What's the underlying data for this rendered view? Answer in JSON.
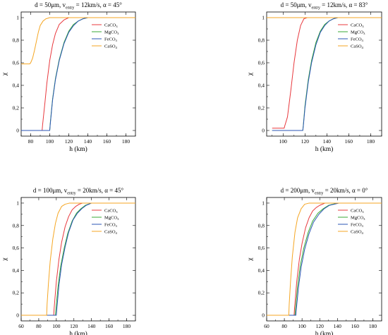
{
  "figure": {
    "colors": {
      "CaCO3": "#e8383d",
      "MgCO3": "#3aaa35",
      "FeCO3": "#2b55b5",
      "CaSO4": "#f5a623"
    }
  },
  "chart_data": [
    {
      "type": "line",
      "title": {
        "prefix": "d = 50μm, v",
        "sub": "entry",
        "suffix": " = 12km/s, α = 45°"
      },
      "xlabel": "h (km)",
      "ylabel": "χ",
      "xlim": [
        70,
        190
      ],
      "ylim": [
        -0.05,
        1.05
      ],
      "xticks": [
        "80",
        "100",
        "120",
        "140",
        "160",
        "180"
      ],
      "yticks": [
        "0",
        "0,2",
        "0,4",
        "0,6",
        "0,8",
        "1"
      ],
      "legend_position": "top-right",
      "series": [
        {
          "name": "CaCO3",
          "label_main": "CaCO",
          "label_sub": "3",
          "color": "#e8383d",
          "x": [
            70,
            92,
            92.5,
            95,
            97,
            100,
            103,
            106,
            110,
            115,
            120,
            125,
            190
          ],
          "y": [
            0,
            0,
            0.05,
            0.25,
            0.42,
            0.62,
            0.76,
            0.86,
            0.94,
            0.98,
            1.0,
            1.0,
            1.0
          ]
        },
        {
          "name": "MgCO3",
          "label_main": "MgCO",
          "label_sub": "3",
          "color": "#3aaa35",
          "x": [
            70,
            100,
            100.5,
            103,
            106,
            110,
            115,
            120,
            125,
            130,
            135,
            140,
            190
          ],
          "y": [
            0,
            0,
            0.06,
            0.28,
            0.46,
            0.63,
            0.78,
            0.88,
            0.94,
            0.97,
            0.99,
            1.0,
            1.0
          ]
        },
        {
          "name": "FeCO3",
          "label_main": "FeCO",
          "label_sub": "3",
          "color": "#2b55b5",
          "x": [
            70,
            100,
            100.5,
            103,
            106,
            110,
            115,
            120,
            125,
            130,
            135,
            140,
            190
          ],
          "y": [
            0,
            0,
            0.05,
            0.27,
            0.45,
            0.62,
            0.77,
            0.87,
            0.93,
            0.97,
            0.99,
            1.0,
            1.0
          ]
        },
        {
          "name": "CaSO4",
          "label_main": "CaSO",
          "label_sub": "4",
          "color": "#f5a623",
          "x": [
            70,
            72,
            76,
            79,
            80,
            82,
            84,
            86,
            88,
            90,
            93,
            96,
            100,
            190
          ],
          "y": [
            0.59,
            0.59,
            0.59,
            0.59,
            0.6,
            0.64,
            0.71,
            0.79,
            0.87,
            0.93,
            0.97,
            0.99,
            1.0,
            1.0
          ]
        }
      ]
    },
    {
      "type": "line",
      "title": {
        "prefix": "d = 50μm, v",
        "sub": "entry",
        "suffix": " = 12km/s, α = 83°"
      },
      "xlabel": "h (km)",
      "ylabel": "χ",
      "xlim": [
        85,
        190
      ],
      "ylim": [
        -0.05,
        1.05
      ],
      "xticks": [
        "100",
        "120",
        "140",
        "160",
        "180"
      ],
      "yticks": [
        "0",
        "0,2",
        "0,4",
        "0,6",
        "0,8",
        "1"
      ],
      "legend_position": "top-right",
      "series": [
        {
          "name": "CaCO3",
          "label_main": "CaCO",
          "label_sub": "3",
          "color": "#e8383d",
          "x": [
            90,
            101,
            101.5,
            104,
            107,
            110,
            113,
            116,
            119,
            122,
            190
          ],
          "y": [
            0.02,
            0.02,
            0.04,
            0.12,
            0.35,
            0.6,
            0.8,
            0.93,
            0.99,
            1.0,
            1.0
          ]
        },
        {
          "name": "MgCO3",
          "label_main": "MgCO",
          "label_sub": "3",
          "color": "#3aaa35",
          "x": [
            90,
            118,
            118.5,
            120,
            123,
            126,
            130,
            134,
            138,
            142,
            146,
            150,
            190
          ],
          "y": [
            0,
            0,
            0.05,
            0.22,
            0.45,
            0.62,
            0.78,
            0.88,
            0.94,
            0.97,
            0.99,
            1.0,
            1.0
          ]
        },
        {
          "name": "FeCO3",
          "label_main": "FeCO",
          "label_sub": "3",
          "color": "#2b55b5",
          "x": [
            90,
            118,
            118.5,
            120,
            123,
            126,
            130,
            134,
            138,
            142,
            146,
            150,
            190
          ],
          "y": [
            0,
            0,
            0.04,
            0.2,
            0.43,
            0.6,
            0.76,
            0.87,
            0.93,
            0.97,
            0.99,
            1.0,
            1.0
          ]
        },
        {
          "name": "CaSO4",
          "label_main": "CaSO",
          "label_sub": "4",
          "color": "#f5a623",
          "x": [
            85,
            190
          ],
          "y": [
            1.0,
            1.0
          ]
        }
      ]
    },
    {
      "type": "line",
      "title": {
        "prefix": "d = 100μm, v",
        "sub": "entry",
        "suffix": " = 20km/s, α = 45°"
      },
      "xlabel": "h (km)",
      "ylabel": "χ",
      "xlim": [
        60,
        190
      ],
      "ylim": [
        -0.05,
        1.05
      ],
      "xticks": [
        "60",
        "80",
        "100",
        "120",
        "140",
        "160",
        "180"
      ],
      "yticks": [
        "0",
        "0,2",
        "0,4",
        "0,6",
        "0,8",
        "1"
      ],
      "legend_position": "top-right",
      "series": [
        {
          "name": "CaCO3",
          "label_main": "CaCO",
          "label_sub": "3",
          "color": "#e8383d",
          "x": [
            60,
            97,
            97.5,
            100,
            103,
            106,
            110,
            114,
            118,
            122,
            126,
            130,
            190
          ],
          "y": [
            0,
            0,
            0.06,
            0.3,
            0.5,
            0.65,
            0.79,
            0.88,
            0.94,
            0.97,
            0.99,
            1.0,
            1.0
          ]
        },
        {
          "name": "MgCO3",
          "label_main": "MgCO",
          "label_sub": "3",
          "color": "#3aaa35",
          "x": [
            60,
            99,
            99.5,
            102,
            105,
            109,
            113,
            118,
            123,
            128,
            133,
            140,
            190
          ],
          "y": [
            0,
            0,
            0.05,
            0.26,
            0.44,
            0.6,
            0.73,
            0.84,
            0.91,
            0.95,
            0.98,
            1.0,
            1.0
          ]
        },
        {
          "name": "FeCO3",
          "label_main": "FeCO",
          "label_sub": "3",
          "color": "#2b55b5",
          "x": [
            60,
            100,
            100.5,
            103,
            106,
            110,
            114,
            119,
            124,
            129,
            134,
            140,
            190
          ],
          "y": [
            0,
            0,
            0.05,
            0.27,
            0.45,
            0.61,
            0.74,
            0.85,
            0.91,
            0.95,
            0.98,
            1.0,
            1.0
          ]
        },
        {
          "name": "CaSO4",
          "label_main": "CaSO",
          "label_sub": "4",
          "color": "#f5a623",
          "x": [
            60,
            89,
            89.5,
            91,
            93,
            96,
            99,
            102,
            106,
            110,
            115,
            190
          ],
          "y": [
            0,
            0,
            0.1,
            0.28,
            0.48,
            0.68,
            0.82,
            0.91,
            0.97,
            0.99,
            1.0,
            1.0
          ]
        }
      ]
    },
    {
      "type": "line",
      "title": {
        "prefix": "d = 200μm, v",
        "sub": "entry",
        "suffix": " = 20km/s, α = 0°"
      },
      "xlabel": "h (km)",
      "ylabel": "χ",
      "xlim": [
        60,
        190
      ],
      "ylim": [
        -0.05,
        1.05
      ],
      "xticks": [
        "60",
        "80",
        "100",
        "120",
        "140",
        "160",
        "180"
      ],
      "yticks": [
        "0",
        "0,2",
        "0,4",
        "0,6",
        "0,8",
        "1"
      ],
      "legend_position": "top-right",
      "series": [
        {
          "name": "CaCO3",
          "label_main": "CaCO",
          "label_sub": "3",
          "color": "#e8383d",
          "x": [
            60,
            91,
            91.5,
            94,
            97,
            100,
            104,
            108,
            112,
            116,
            120,
            126,
            190
          ],
          "y": [
            0,
            0,
            0.06,
            0.3,
            0.5,
            0.64,
            0.78,
            0.87,
            0.93,
            0.96,
            0.98,
            1.0,
            1.0
          ]
        },
        {
          "name": "MgCO3",
          "label_main": "MgCO",
          "label_sub": "3",
          "color": "#3aaa35",
          "x": [
            60,
            92,
            92.5,
            95,
            98,
            102,
            107,
            112,
            118,
            124,
            130,
            140,
            190
          ],
          "y": [
            0,
            0,
            0.05,
            0.26,
            0.44,
            0.6,
            0.74,
            0.84,
            0.91,
            0.95,
            0.98,
            1.0,
            1.0
          ]
        },
        {
          "name": "FeCO3",
          "label_main": "FeCO",
          "label_sub": "3",
          "color": "#2b55b5",
          "x": [
            60,
            93,
            93.5,
            96,
            99,
            103,
            108,
            113,
            119,
            125,
            131,
            142,
            190
          ],
          "y": [
            0,
            0,
            0.05,
            0.25,
            0.43,
            0.59,
            0.73,
            0.83,
            0.9,
            0.95,
            0.98,
            1.0,
            1.0
          ]
        },
        {
          "name": "CaSO4",
          "label_main": "CaSO",
          "label_sub": "4",
          "color": "#f5a623",
          "x": [
            60,
            85,
            85.5,
            87,
            89,
            92,
            95,
            99,
            103,
            108,
            190
          ],
          "y": [
            0,
            0,
            0.1,
            0.3,
            0.52,
            0.74,
            0.87,
            0.95,
            0.99,
            1.0,
            1.0
          ]
        }
      ]
    }
  ]
}
